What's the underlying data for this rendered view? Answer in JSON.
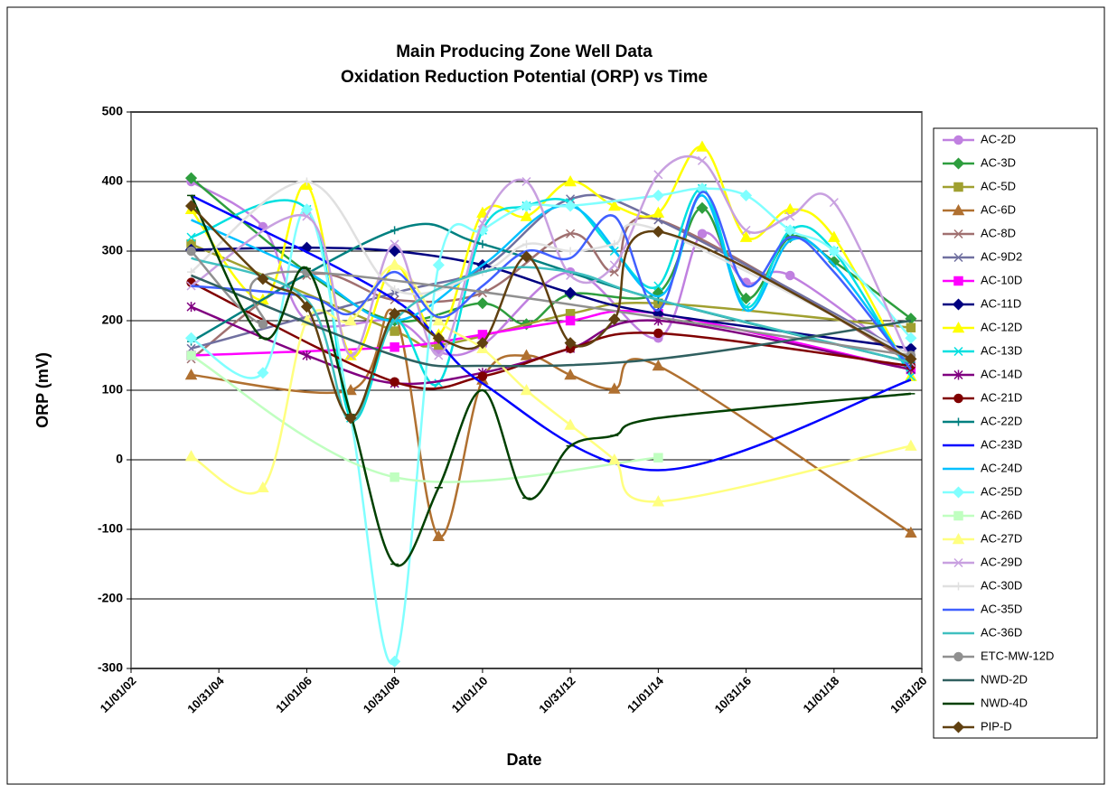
{
  "chart_data": {
    "type": "line",
    "title": "Main Producing Zone Well Data",
    "subtitle": "Oxidation Reduction Potential (ORP) vs Time",
    "x_label": "Date",
    "y_label": "ORP (mV)",
    "xlim": [
      "11/01/02",
      "10/31/20"
    ],
    "xticks": [
      "11/01/02",
      "10/31/04",
      "11/01/06",
      "10/31/08",
      "11/01/10",
      "10/31/12",
      "11/01/14",
      "10/31/16",
      "11/01/18",
      "10/31/20"
    ],
    "ylim": [
      -300,
      500
    ],
    "yticks": [
      -300,
      -200,
      -100,
      0,
      100,
      200,
      300,
      400,
      500
    ],
    "grid": true,
    "smooth": true,
    "legend": "right",
    "series": [
      {
        "name": "AC-2D",
        "color": "#c080e0",
        "marker": "circle",
        "x": [
          "03/15/04",
          "11/01/05",
          "11/01/06",
          "10/31/08",
          "11/01/09",
          "11/01/10",
          "10/31/12",
          "11/01/14",
          "11/01/15",
          "10/31/16",
          "11/01/17",
          "08/01/20"
        ],
        "values": [
          400,
          335,
          200,
          200,
          155,
          165,
          270,
          175,
          325,
          255,
          265,
          140
        ]
      },
      {
        "name": "AC-3D",
        "color": "#2e9e3e",
        "marker": "diamond",
        "x": [
          "03/15/04",
          "11/01/06",
          "10/31/08",
          "11/01/10",
          "11/01/11",
          "10/31/12",
          "11/01/14",
          "11/01/15",
          "10/31/16",
          "11/01/17",
          "11/01/18",
          "08/01/20"
        ],
        "values": [
          405,
          270,
          200,
          225,
          195,
          238,
          240,
          362,
          232,
          320,
          285,
          203
        ]
      },
      {
        "name": "AC-5D",
        "color": "#a0a030",
        "marker": "square",
        "x": [
          "03/15/04",
          "10/31/08",
          "11/01/09",
          "10/31/12",
          "11/01/14",
          "08/01/20"
        ],
        "values": [
          310,
          185,
          165,
          210,
          225,
          190
        ]
      },
      {
        "name": "AC-6D",
        "color": "#b07030",
        "marker": "triangle",
        "x": [
          "03/15/04",
          "11/01/07",
          "10/31/08",
          "11/01/09",
          "11/01/10",
          "11/01/11",
          "10/31/12",
          "11/01/13",
          "11/01/14",
          "08/01/20"
        ],
        "values": [
          122,
          100,
          210,
          -110,
          115,
          150,
          122,
          102,
          135,
          -105
        ]
      },
      {
        "name": "AC-8D",
        "color": "#a07070",
        "marker": "x",
        "x": [
          "03/15/04",
          "11/01/06",
          "10/31/08",
          "11/01/10",
          "10/31/12",
          "11/01/13",
          "11/01/14",
          "08/01/20"
        ],
        "values": [
          145,
          265,
          230,
          240,
          325,
          270,
          345,
          140
        ]
      },
      {
        "name": "AC-9D2",
        "color": "#7070a0",
        "marker": "x",
        "x": [
          "03/15/04",
          "10/31/08",
          "11/01/10",
          "10/31/12",
          "11/01/14",
          "08/01/20"
        ],
        "values": [
          160,
          240,
          275,
          375,
          345,
          150
        ]
      },
      {
        "name": "AC-10D",
        "color": "#ff00ff",
        "marker": "square",
        "x": [
          "03/15/04",
          "10/31/08",
          "11/01/10",
          "10/31/12",
          "11/01/14",
          "08/01/20"
        ],
        "values": [
          150,
          162,
          180,
          200,
          210,
          130
        ]
      },
      {
        "name": "AC-11D",
        "color": "#000080",
        "marker": "diamond",
        "x": [
          "03/15/04",
          "11/01/06",
          "10/31/08",
          "11/01/10",
          "10/31/12",
          "11/01/14",
          "08/01/20"
        ],
        "values": [
          302,
          305,
          300,
          280,
          240,
          210,
          160
        ]
      },
      {
        "name": "AC-12D",
        "color": "#ffff00",
        "marker": "triangle",
        "x": [
          "03/15/04",
          "11/01/05",
          "11/01/06",
          "11/01/07",
          "10/31/08",
          "11/01/09",
          "11/01/10",
          "11/01/11",
          "10/31/12",
          "11/01/13",
          "11/01/14",
          "11/01/15",
          "10/31/16",
          "11/01/17",
          "11/01/18",
          "08/01/20"
        ],
        "values": [
          360,
          230,
          395,
          150,
          280,
          180,
          355,
          350,
          400,
          365,
          355,
          450,
          320,
          360,
          320,
          120
        ]
      },
      {
        "name": "AC-13D",
        "color": "#00e0e0",
        "marker": "x",
        "x": [
          "03/15/04",
          "11/01/06",
          "11/01/07",
          "10/31/08",
          "11/01/09",
          "11/01/10",
          "11/01/11",
          "10/31/12",
          "11/01/13",
          "11/01/14",
          "11/01/15",
          "10/31/16",
          "11/01/17",
          "11/01/18",
          "08/01/20"
        ],
        "values": [
          320,
          360,
          60,
          200,
          110,
          330,
          365,
          370,
          300,
          250,
          390,
          220,
          330,
          300,
          120
        ]
      },
      {
        "name": "AC-14D",
        "color": "#800080",
        "marker": "star",
        "x": [
          "03/15/04",
          "11/01/06",
          "10/31/08",
          "11/01/10",
          "10/31/12",
          "11/01/14",
          "08/01/20"
        ],
        "values": [
          220,
          150,
          110,
          125,
          160,
          200,
          130
        ]
      },
      {
        "name": "AC-21D",
        "color": "#800000",
        "marker": "circle",
        "x": [
          "03/15/04",
          "10/31/08",
          "11/01/10",
          "10/31/12",
          "11/01/14",
          "08/01/20"
        ],
        "values": [
          255,
          112,
          120,
          160,
          182,
          135
        ]
      },
      {
        "name": "AC-22D",
        "color": "#008080",
        "marker": "plus",
        "x": [
          "03/15/04",
          "10/31/08",
          "11/01/10",
          "11/01/14",
          "08/01/20"
        ],
        "values": [
          170,
          330,
          310,
          230,
          140
        ]
      },
      {
        "name": "AC-23D",
        "color": "#0000ff",
        "marker": "none",
        "x": [
          "03/15/04",
          "10/31/08",
          "11/01/10",
          "11/01/14",
          "08/01/20"
        ],
        "values": [
          380,
          230,
          110,
          -15,
          115
        ]
      },
      {
        "name": "AC-24D",
        "color": "#00c0ff",
        "marker": "none",
        "x": [
          "03/15/04",
          "11/01/06",
          "10/31/08",
          "11/01/10",
          "10/31/12",
          "11/01/14",
          "11/01/15",
          "10/31/16",
          "11/01/17",
          "11/01/18",
          "08/01/20"
        ],
        "values": [
          345,
          270,
          200,
          280,
          365,
          235,
          380,
          215,
          315,
          280,
          130
        ]
      },
      {
        "name": "AC-25D",
        "color": "#80ffff",
        "marker": "diamond",
        "x": [
          "03/15/04",
          "11/01/05",
          "11/01/06",
          "11/01/07",
          "10/31/08",
          "11/01/09",
          "11/01/10",
          "11/01/11",
          "10/31/12",
          "11/01/14",
          "11/01/15",
          "10/31/16",
          "11/01/17",
          "11/01/18",
          "08/01/20"
        ],
        "values": [
          175,
          125,
          360,
          60,
          -290,
          280,
          330,
          365,
          365,
          380,
          390,
          380,
          330,
          300,
          175
        ]
      },
      {
        "name": "AC-26D",
        "color": "#c0ffc0",
        "marker": "square",
        "x": [
          "03/15/04",
          "10/31/08",
          "11/01/14"
        ],
        "values": [
          150,
          -25,
          3
        ]
      },
      {
        "name": "AC-27D",
        "color": "#ffff80",
        "marker": "triangle",
        "x": [
          "03/15/04",
          "11/01/05",
          "11/01/06",
          "11/01/07",
          "10/31/08",
          "11/01/09",
          "11/01/10",
          "11/01/11",
          "10/31/12",
          "11/01/13",
          "11/01/14",
          "08/01/20"
        ],
        "values": [
          5,
          -40,
          200,
          200,
          280,
          200,
          160,
          100,
          50,
          0,
          -60,
          20
        ]
      },
      {
        "name": "AC-29D",
        "color": "#c8a0e0",
        "marker": "x",
        "x": [
          "03/15/04",
          "11/01/06",
          "11/01/07",
          "10/31/08",
          "11/01/09",
          "11/01/10",
          "11/01/11",
          "10/31/12",
          "11/01/13",
          "11/01/14",
          "11/01/15",
          "10/31/16",
          "11/01/17",
          "11/01/18",
          "08/01/20"
        ],
        "values": [
          250,
          350,
          150,
          310,
          150,
          340,
          400,
          265,
          280,
          410,
          430,
          330,
          350,
          370,
          140
        ]
      },
      {
        "name": "AC-30D",
        "color": "#e0e0e0",
        "marker": "plus",
        "x": [
          "03/15/04",
          "11/01/06",
          "10/31/08",
          "11/01/10",
          "11/01/11",
          "10/31/12",
          "11/01/13",
          "11/01/14",
          "08/01/20"
        ],
        "values": [
          270,
          400,
          245,
          270,
          310,
          300,
          310,
          330,
          150
        ]
      },
      {
        "name": "AC-35D",
        "color": "#4060ff",
        "marker": "none",
        "x": [
          "03/15/04",
          "11/01/06",
          "11/01/07",
          "10/31/08",
          "11/01/09",
          "11/01/10",
          "11/01/11",
          "10/31/12",
          "11/01/13",
          "11/01/14",
          "11/01/15",
          "10/31/16",
          "11/01/17",
          "11/01/18",
          "08/01/20"
        ],
        "values": [
          250,
          235,
          210,
          270,
          205,
          250,
          300,
          290,
          350,
          215,
          385,
          250,
          320,
          270,
          130
        ]
      },
      {
        "name": "AC-36D",
        "color": "#40c0c0",
        "marker": "none",
        "x": [
          "03/15/04",
          "11/01/06",
          "11/01/07",
          "10/31/08",
          "11/01/10",
          "10/31/12",
          "11/01/14",
          "08/01/20"
        ],
        "values": [
          290,
          230,
          55,
          200,
          270,
          270,
          230,
          140
        ]
      },
      {
        "name": "ETC-MW-12D",
        "color": "#909090",
        "marker": "circle",
        "x": [
          "03/15/04",
          "11/01/05",
          "11/01/06",
          "08/01/20"
        ],
        "values": [
          300,
          195,
          270,
          150
        ]
      },
      {
        "name": "NWD-2D",
        "color": "#306060",
        "marker": "none",
        "x": [
          "03/15/04",
          "10/31/08",
          "11/01/10",
          "11/01/14",
          "08/01/20"
        ],
        "values": [
          265,
          150,
          135,
          145,
          200
        ]
      },
      {
        "name": "NWD-4D",
        "color": "#004000",
        "marker": "dash",
        "x": [
          "03/15/04",
          "11/01/05",
          "11/01/06",
          "11/01/07",
          "10/31/08",
          "11/01/09",
          "11/01/10",
          "11/01/11",
          "10/31/12",
          "11/01/13",
          "11/01/14",
          "08/01/20"
        ],
        "values": [
          380,
          175,
          275,
          65,
          -150,
          -40,
          100,
          -55,
          20,
          35,
          60,
          95
        ]
      },
      {
        "name": "PIP-D",
        "color": "#604010",
        "marker": "diamond",
        "x": [
          "03/15/04",
          "11/01/05",
          "11/01/06",
          "11/01/07",
          "10/31/08",
          "11/01/09",
          "11/01/10",
          "11/01/11",
          "10/31/12",
          "11/01/13",
          "11/01/14",
          "08/01/20"
        ],
        "values": [
          365,
          260,
          220,
          60,
          210,
          175,
          168,
          292,
          168,
          202,
          328,
          145
        ]
      }
    ]
  }
}
